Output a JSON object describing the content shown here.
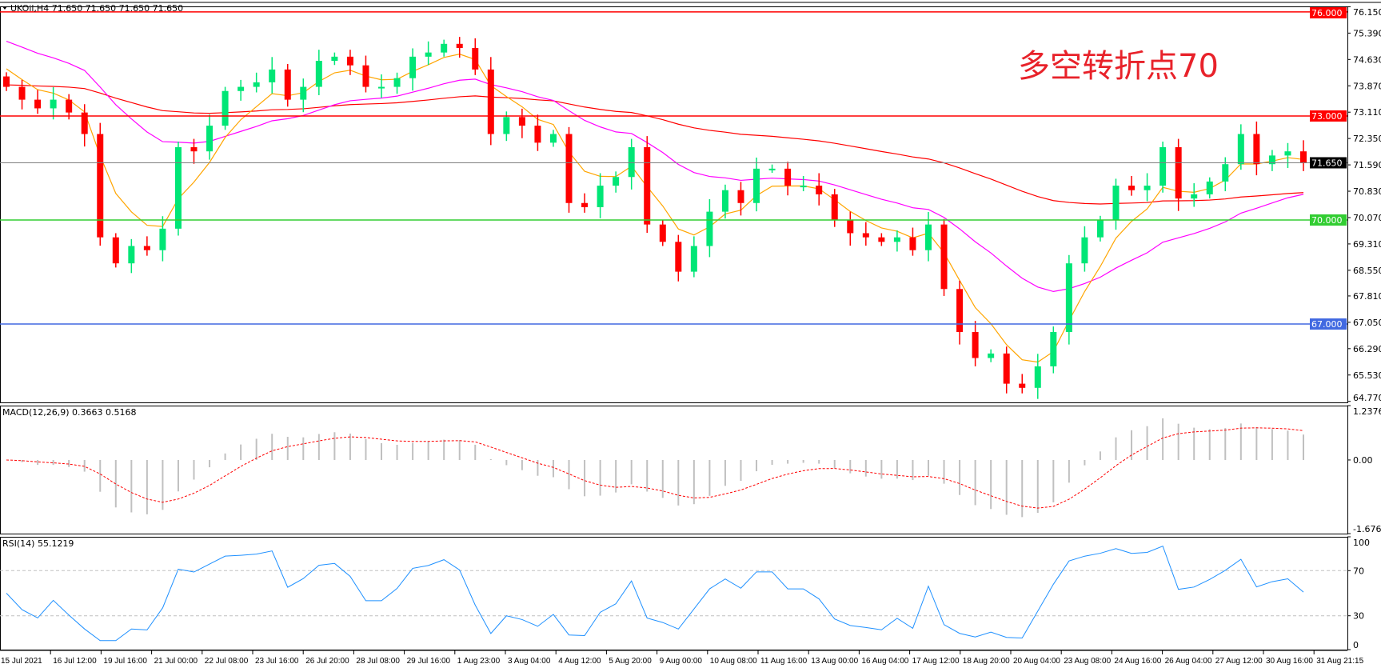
{
  "header": {
    "symbol_line": "UKOil,H4  71.650 71.650 71.650 71.650",
    "macd_label": "MACD(12,26,9) 0.3663 0.5168",
    "rsi_label": "RSI(14) 55.1219"
  },
  "annotation": "多空转折点70",
  "colors": {
    "bull": "#00E676",
    "bear": "#FF0000",
    "ma_fast": "#FFA500",
    "ma_mid": "#FF00FF",
    "ma_slow": "#FF0000",
    "macd_hist": "#C0C0C0",
    "macd_signal": "#FF0000",
    "rsi": "#1E90FF"
  },
  "chart_data": [
    {
      "type": "candlestick",
      "symbol": "UKOil",
      "timeframe": "H4",
      "ylim": [
        64.74,
        76.16
      ],
      "y_ticks": [
        "76.150",
        "75.390",
        "74.630",
        "73.870",
        "73.110",
        "72.350",
        "71.590",
        "70.830",
        "70.070",
        "69.310",
        "68.550",
        "67.810",
        "67.050",
        "66.290",
        "65.530",
        "64.770"
      ],
      "x_ticks": [
        "15 Jul 2021",
        "16 Jul 12:00",
        "19 Jul 16:00",
        "21 Jul 00:00",
        "22 Jul 08:00",
        "23 Jul 16:00",
        "26 Jul 20:00",
        "28 Jul 08:00",
        "29 Jul 16:00",
        "1 Aug 23:00",
        "3 Aug 04:00",
        "4 Aug 12:00",
        "5 Aug 20:00",
        "9 Aug 00:00",
        "10 Aug 08:00",
        "11 Aug 16:00",
        "13 Aug 00:00",
        "16 Aug 04:00",
        "17 Aug 12:00",
        "18 Aug 20:00",
        "20 Aug 04:00",
        "23 Aug 08:00",
        "24 Aug 16:00",
        "26 Aug 04:00",
        "27 Aug 12:00",
        "30 Aug 16:00",
        "31 Aug 21:15"
      ],
      "closes": [
        73.84,
        73.47,
        73.22,
        73.47,
        73.1,
        72.48,
        69.5,
        68.75,
        69.25,
        69.13,
        69.75,
        72.1,
        71.98,
        72.72,
        73.72,
        73.84,
        73.97,
        74.34,
        73.47,
        73.84,
        74.59,
        74.71,
        74.46,
        73.84,
        73.84,
        74.09,
        74.71,
        74.83,
        75.08,
        74.96,
        74.34,
        72.48,
        72.97,
        72.72,
        72.23,
        72.48,
        70.49,
        70.37,
        70.99,
        71.24,
        72.1,
        69.87,
        69.37,
        68.51,
        69.25,
        70.24,
        70.86,
        70.49,
        71.48,
        71.48,
        70.99,
        70.99,
        70.74,
        70.0,
        69.62,
        69.5,
        69.37,
        69.5,
        69.13,
        69.87,
        68.01,
        66.77,
        66.02,
        66.15,
        65.28,
        65.16,
        65.78,
        66.77,
        68.75,
        69.5,
        70.0,
        70.99,
        70.86,
        70.99,
        72.1,
        70.62,
        70.74,
        71.11,
        71.61,
        72.48,
        71.61,
        71.86,
        71.98,
        71.65
      ],
      "levels": [
        {
          "price": 76.0,
          "label": "76.000",
          "color": "#FF0000"
        },
        {
          "price": 73.0,
          "label": "73.000",
          "color": "#FF0000"
        },
        {
          "price": 71.65,
          "label": "71.650",
          "color": "#808080",
          "label_bg": "#000000"
        },
        {
          "price": 70.0,
          "label": "70.000",
          "color": "#32CD32"
        },
        {
          "price": 67.0,
          "label": "67.000",
          "color": "#4169E1"
        }
      ]
    },
    {
      "type": "bar+line",
      "name": "MACD(12,26,9)",
      "ylim": [
        -1.6762,
        1.2376
      ],
      "y_ticks": [
        "1.2376",
        "0.00",
        "-1.6762"
      ]
    },
    {
      "type": "line",
      "name": "RSI(14)",
      "ylim": [
        0,
        100
      ],
      "y_ticks": [
        "100",
        "70",
        "30",
        "0"
      ],
      "levels": [
        70,
        30
      ]
    }
  ]
}
